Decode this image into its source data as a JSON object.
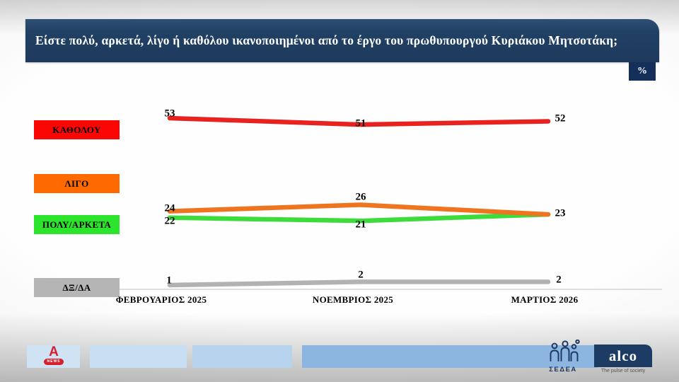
{
  "slide": {
    "title": "Είστε πολύ, αρκετά, λίγο ή καθόλου ικανοποιημένοι από το έργο του πρωθυπουργού Κυριάκου Μητσοτάκη;",
    "unit_badge": "%"
  },
  "chart_data": {
    "type": "line",
    "categories": [
      "ΦΕΒΡΟΥΑΡΙΟΣ 2025",
      "ΝΟΕΜΒΡΙΟΣ 2025",
      "ΜΑΡΤΙΟΣ 2026"
    ],
    "series": [
      {
        "name": "ΚΑΘΟΛΟΥ",
        "values": [
          53,
          51,
          52
        ],
        "color": "#e8231f",
        "legend_color": "#fb0505"
      },
      {
        "name": "ΛΙΓΟ",
        "values": [
          24,
          26,
          23
        ],
        "color": "#ee7420",
        "legend_color": "#ff6a00"
      },
      {
        "name": "ΠΟΛΥ/ΑΡΚΕΤΑ",
        "values": [
          22,
          21,
          23
        ],
        "color": "#3bdc3b",
        "legend_color": "#2de42d"
      },
      {
        "name": "ΔΞ/ΔΑ",
        "values": [
          1,
          2,
          2
        ],
        "color": "#b2b2b2",
        "legend_color": "#b5b5b5"
      }
    ],
    "unit": "%",
    "grid": false,
    "legend_position": "left"
  },
  "footer": {
    "alpha_logo_letter": "A",
    "alpha_logo_sub": "NEWS",
    "sedea_label": "ΣΕΔΕΑ",
    "alco_label": "alco",
    "alco_tagline": "The pulse of society"
  }
}
